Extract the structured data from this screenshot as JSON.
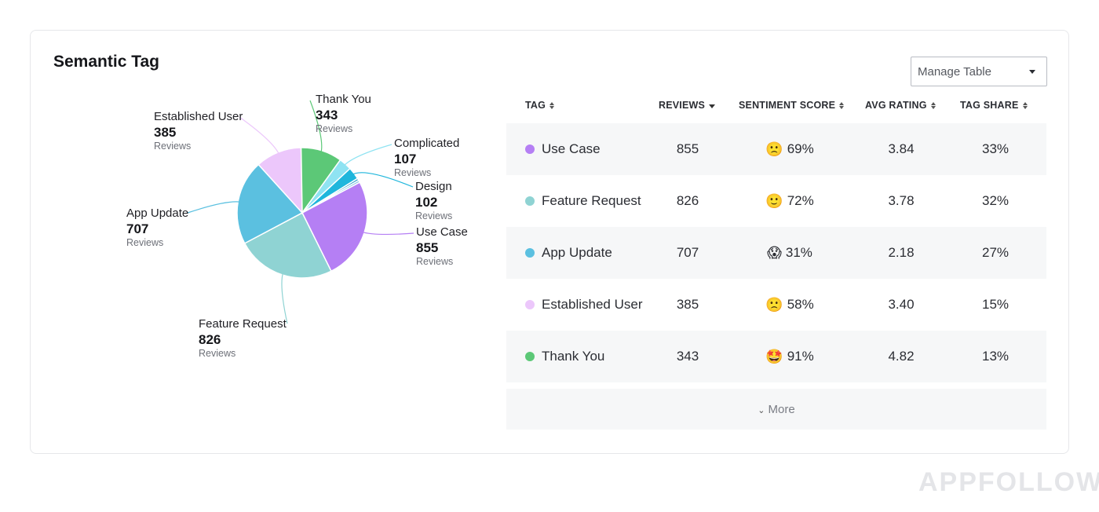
{
  "card": {
    "title": "Semantic Tag",
    "manage_label": "Manage Table"
  },
  "chart_data": {
    "type": "pie",
    "unit_label": "Reviews",
    "slices": [
      {
        "name": "Use Case",
        "value": 855,
        "color": "#b57ff4"
      },
      {
        "name": "Feature Request",
        "value": 826,
        "color": "#8fd3d3"
      },
      {
        "name": "App Update",
        "value": 707,
        "color": "#5bc0e0"
      },
      {
        "name": "Established User",
        "value": 385,
        "color": "#ecc7fb"
      },
      {
        "name": "Thank You",
        "value": 343,
        "color": "#5cc877"
      },
      {
        "name": "Complicated",
        "value": 107,
        "color": "#8fe3f2"
      },
      {
        "name": "Design",
        "value": 102,
        "color": "#1fb6dc"
      }
    ],
    "unlabeled_small_slice_colors": [
      "#2a9fc6",
      "#8cc9e6"
    ]
  },
  "table": {
    "columns": [
      {
        "label": "TAG",
        "sort": "both"
      },
      {
        "label": "REVIEWS",
        "sort": "desc"
      },
      {
        "label": "SENTIMENT SCORE",
        "sort": "both"
      },
      {
        "label": "AVG RATING",
        "sort": "both"
      },
      {
        "label": "TAG SHARE",
        "sort": "both"
      }
    ],
    "rows": [
      {
        "tag": "Use Case",
        "color": "#b57ff4",
        "reviews": "855",
        "emoji": "🙁",
        "sentiment": "69%",
        "rating": "3.84",
        "share": "33%"
      },
      {
        "tag": "Feature Request",
        "color": "#8fd3d3",
        "reviews": "826",
        "emoji": "🙂",
        "sentiment": "72%",
        "rating": "3.78",
        "share": "32%"
      },
      {
        "tag": "App Update",
        "color": "#5bc0e0",
        "reviews": "707",
        "emoji": "😱",
        "sentiment": "31%",
        "rating": "2.18",
        "share": "27%"
      },
      {
        "tag": "Established User",
        "color": "#ecc7fb",
        "reviews": "385",
        "emoji": "🙁",
        "sentiment": "58%",
        "rating": "3.40",
        "share": "15%"
      },
      {
        "tag": "Thank You",
        "color": "#5cc877",
        "reviews": "343",
        "emoji": "🤩",
        "sentiment": "91%",
        "rating": "4.82",
        "share": "13%"
      }
    ],
    "more_label": "More"
  },
  "watermark": "APPFOLLOW"
}
